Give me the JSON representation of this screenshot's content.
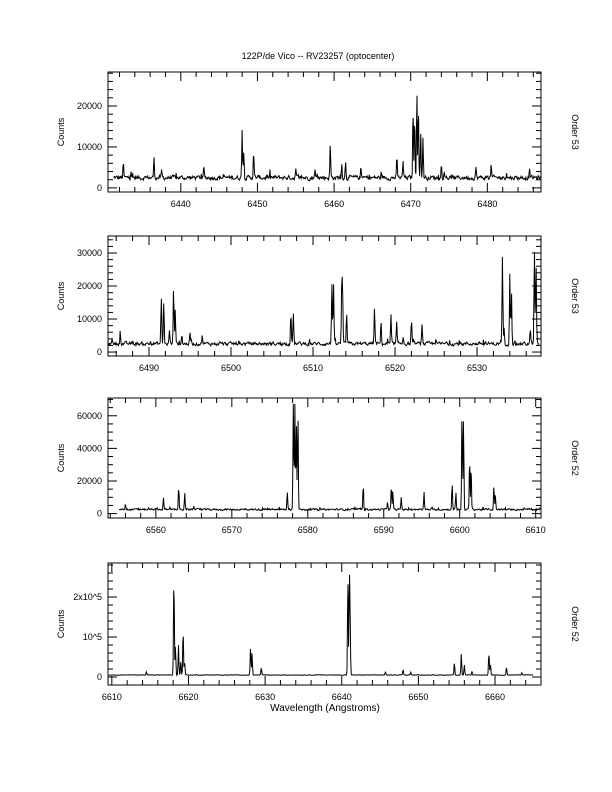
{
  "chart_data": {
    "title": "122P/de Vico -- RV23257 (optocenter)",
    "xlabel": "Wavelength (Angstroms)",
    "panels": [
      {
        "type": "line",
        "ylabel": "Counts",
        "side_label": "Order 53",
        "xlim": [
          6430.5,
          6487
        ],
        "ylim": [
          -1000,
          28300
        ],
        "xticks": [
          6440,
          6450,
          6460,
          6470,
          6480
        ],
        "xtick_labels": [
          "6440",
          "6450",
          "6460",
          "6470",
          "6480"
        ],
        "yticks": [
          0,
          10000,
          20000
        ],
        "ytick_labels": [
          "0",
          "10000",
          "20000"
        ],
        "x_minor_step": 2,
        "y_minor_step": 2000,
        "data_range": [
          6431.2,
          6487
        ],
        "continuum": 2500,
        "lines": [
          [
            6432.5,
            6000
          ],
          [
            6433.5,
            4500
          ],
          [
            6436.5,
            7500
          ],
          [
            6437.5,
            4000
          ],
          [
            6443,
            5000
          ],
          [
            6448,
            14000
          ],
          [
            6448.2,
            8800
          ],
          [
            6449.5,
            9000
          ],
          [
            6455,
            4500
          ],
          [
            6457.5,
            4500
          ],
          [
            6459.5,
            11000
          ],
          [
            6461,
            6000
          ],
          [
            6461.5,
            6500
          ],
          [
            6463.5,
            5000
          ],
          [
            6468.2,
            7500
          ],
          [
            6469,
            6500
          ],
          [
            6470.3,
            19500
          ],
          [
            6470.5,
            18000
          ],
          [
            6470.8,
            24500
          ],
          [
            6471,
            20500
          ],
          [
            6471.3,
            13500
          ],
          [
            6471.6,
            12500
          ],
          [
            6474,
            5500
          ],
          [
            6478.5,
            5000
          ],
          [
            6480.5,
            5500
          ],
          [
            6482.5,
            4000
          ],
          [
            6485.5,
            4500
          ]
        ]
      },
      {
        "type": "line",
        "ylabel": "Counts",
        "side_label": "Order 53",
        "xlim": [
          6485,
          6537.8
        ],
        "ylim": [
          -1200,
          35150
        ],
        "xticks": [
          6490,
          6500,
          6510,
          6520,
          6530
        ],
        "xtick_labels": [
          "6490",
          "6500",
          "6510",
          "6520",
          "6530"
        ],
        "yticks": [
          0,
          10000,
          20000,
          30000
        ],
        "ytick_labels": [
          "0",
          "10000",
          "20000",
          "30000"
        ],
        "x_minor_step": 2,
        "y_minor_step": 2000,
        "data_range": [
          6485,
          6537.6
        ],
        "continuum": 2500,
        "lines": [
          [
            6485.5,
            4500
          ],
          [
            6486.5,
            6000
          ],
          [
            6491.5,
            16500
          ],
          [
            6491.8,
            15000
          ],
          [
            6492.5,
            6500
          ],
          [
            6493,
            19500
          ],
          [
            6493.2,
            13500
          ],
          [
            6494,
            5500
          ],
          [
            6495,
            6000
          ],
          [
            6496.5,
            5000
          ],
          [
            6507.3,
            12500
          ],
          [
            6507.6,
            12000
          ],
          [
            6512.3,
            21000
          ],
          [
            6512.5,
            20500
          ],
          [
            6513.5,
            18500
          ],
          [
            6513.6,
            18000
          ],
          [
            6514.1,
            12000
          ],
          [
            6517.5,
            14000
          ],
          [
            6518.3,
            9500
          ],
          [
            6519.5,
            10000
          ],
          [
            6520.2,
            9000
          ],
          [
            6521,
            5000
          ],
          [
            6522,
            10000
          ],
          [
            6523.3,
            8000
          ],
          [
            6525,
            4500
          ],
          [
            6533.1,
            29000
          ],
          [
            6533.3,
            7000
          ],
          [
            6534,
            23500
          ],
          [
            6534.2,
            18500
          ],
          [
            6536.5,
            7000
          ],
          [
            6537,
            30500
          ],
          [
            6537.2,
            27000
          ]
        ]
      },
      {
        "type": "line",
        "ylabel": "Counts",
        "side_label": "Order 52",
        "xlim": [
          6553.7,
          6610.7
        ],
        "ylim": [
          -2700,
          70900
        ],
        "xticks": [
          6560,
          6570,
          6580,
          6590,
          6600,
          6610
        ],
        "xtick_labels": [
          "6560",
          "6570",
          "6580",
          "6590",
          "6600",
          "6610"
        ],
        "yticks": [
          0,
          20000,
          40000,
          60000
        ],
        "ytick_labels": [
          "0",
          "20000",
          "40000",
          "60000"
        ],
        "x_minor_step": 2,
        "y_minor_step": 5000,
        "data_range": [
          6555.2,
          6610.7
        ],
        "continuum": 2500,
        "lines": [
          [
            6556,
            6000
          ],
          [
            6561,
            10000
          ],
          [
            6563,
            17000
          ],
          [
            6563.8,
            13000
          ],
          [
            6565,
            5000
          ],
          [
            6577.3,
            13500
          ],
          [
            6578.1,
            69000
          ],
          [
            6578.3,
            68000
          ],
          [
            6578.5,
            55000
          ],
          [
            6578.7,
            61500
          ],
          [
            6587.3,
            18500
          ],
          [
            6590.5,
            7500
          ],
          [
            6591,
            16500
          ],
          [
            6591.2,
            14000
          ],
          [
            6592.3,
            10000
          ],
          [
            6595.3,
            13000
          ],
          [
            6599,
            18000
          ],
          [
            6599.5,
            13000
          ],
          [
            6600.3,
            61000
          ],
          [
            6600.5,
            58000
          ],
          [
            6601.3,
            34000
          ],
          [
            6601.5,
            29000
          ],
          [
            6604.5,
            17000
          ],
          [
            6604.7,
            11000
          ]
        ]
      },
      {
        "type": "line",
        "ylabel": "Counts",
        "side_label": "Order 52",
        "xlim": [
          6609.5,
          6666
        ],
        "ylim": [
          -20000,
          285000
        ],
        "xticks": [
          6610,
          6620,
          6630,
          6640,
          6650,
          6660
        ],
        "xtick_labels": [
          "6610",
          "6620",
          "6630",
          "6640",
          "6650",
          "6660"
        ],
        "yticks": [
          0,
          100000,
          200000
        ],
        "ytick_labels": [
          "0",
          "10^5",
          "2x10^5"
        ],
        "x_minor_step": 2,
        "y_minor_step": 20000,
        "data_range": [
          6609.6,
          6665
        ],
        "continuum": 5000,
        "lines": [
          [
            6614.5,
            13000
          ],
          [
            6618.1,
            258000
          ],
          [
            6618.3,
            80000
          ],
          [
            6618.7,
            80000
          ],
          [
            6619,
            40000
          ],
          [
            6619.3,
            120000
          ],
          [
            6619.5,
            40000
          ],
          [
            6628.1,
            75000
          ],
          [
            6628.3,
            60000
          ],
          [
            6629.5,
            23000
          ],
          [
            6640.8,
            250000
          ],
          [
            6641,
            255000
          ],
          [
            6641.1,
            115000
          ],
          [
            6645.7,
            12000
          ],
          [
            6648,
            18000
          ],
          [
            6649,
            12000
          ],
          [
            6654.7,
            35000
          ],
          [
            6655.6,
            58000
          ],
          [
            6656,
            30000
          ],
          [
            6657,
            14000
          ],
          [
            6659.2,
            63000
          ],
          [
            6659.4,
            35000
          ],
          [
            6661.5,
            25000
          ],
          [
            6663.5,
            10000
          ]
        ]
      }
    ]
  }
}
